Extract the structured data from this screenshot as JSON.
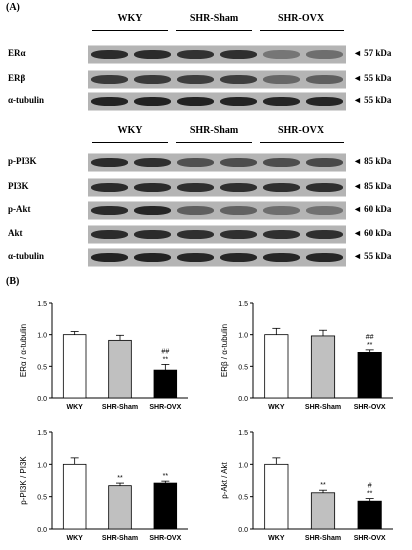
{
  "panelA": {
    "label": "(A)",
    "group_headers_top": [
      "WKY",
      "SHR-Sham",
      "SHR-OVX"
    ],
    "group_headers_bottom": [
      "WKY",
      "SHR-Sham",
      "SHR-OVX"
    ],
    "rows": [
      {
        "name": "ERα",
        "kda": "◄ 57 kDa",
        "intensity": [
          0.85,
          0.85,
          0.8,
          0.82,
          0.35,
          0.4
        ]
      },
      {
        "name": "ERβ",
        "kda": "◄ 55 kDa",
        "intensity": [
          0.75,
          0.75,
          0.72,
          0.72,
          0.45,
          0.5
        ]
      },
      {
        "name": "α-tubulin",
        "kda": "◄ 55 kDa",
        "intensity": [
          0.9,
          0.9,
          0.9,
          0.9,
          0.88,
          0.88
        ]
      },
      {
        "name": "p-PI3K",
        "kda": "◄ 85 kDa",
        "intensity": [
          0.85,
          0.82,
          0.6,
          0.62,
          0.62,
          0.65
        ]
      },
      {
        "name": "PI3K",
        "kda": "◄ 85 kDa",
        "intensity": [
          0.85,
          0.85,
          0.82,
          0.82,
          0.82,
          0.82
        ]
      },
      {
        "name": "p-Akt",
        "kda": "◄ 60 kDa",
        "intensity": [
          0.85,
          0.88,
          0.5,
          0.48,
          0.4,
          0.38
        ]
      },
      {
        "name": "Akt",
        "kda": "◄ 60 kDa",
        "intensity": [
          0.85,
          0.85,
          0.82,
          0.82,
          0.82,
          0.82
        ]
      },
      {
        "name": "α-tubulin",
        "kda": "◄ 55 kDa",
        "intensity": [
          0.9,
          0.9,
          0.88,
          0.88,
          0.88,
          0.88
        ]
      }
    ]
  },
  "panelB": {
    "label": "(B)"
  },
  "chart_data": [
    {
      "type": "bar",
      "categories": [
        "WKY",
        "SHR-Sham",
        "SHR-OVX"
      ],
      "values": [
        1.0,
        0.91,
        0.44
      ],
      "errors": [
        0.05,
        0.08,
        0.09
      ],
      "colors": [
        "#ffffff",
        "#c0c0c0",
        "#000000"
      ],
      "annotations": [
        "",
        "",
        "##\n**"
      ],
      "ylabel": "ERα / α-tubulin",
      "ylim": [
        0,
        1.5
      ],
      "yticks": [
        "0.0",
        "0.5",
        "1.0",
        "1.5"
      ]
    },
    {
      "type": "bar",
      "categories": [
        "WKY",
        "SHR-Sham",
        "SHR-OVX"
      ],
      "values": [
        1.0,
        0.98,
        0.72
      ],
      "errors": [
        0.1,
        0.09,
        0.04
      ],
      "colors": [
        "#ffffff",
        "#c0c0c0",
        "#000000"
      ],
      "annotations": [
        "",
        "",
        "##\n**"
      ],
      "ylabel": "ERβ / α-tubulin",
      "ylim": [
        0,
        1.5
      ],
      "yticks": [
        "0.0",
        "0.5",
        "1.0",
        "1.5"
      ]
    },
    {
      "type": "bar",
      "categories": [
        "WKY",
        "SHR-Sham",
        "SHR-OVX"
      ],
      "values": [
        1.0,
        0.67,
        0.71
      ],
      "errors": [
        0.1,
        0.04,
        0.03
      ],
      "colors": [
        "#ffffff",
        "#c0c0c0",
        "#000000"
      ],
      "annotations": [
        "",
        "**",
        "**"
      ],
      "ylabel": "p-PI3K / PI3K",
      "ylim": [
        0,
        1.5
      ],
      "yticks": [
        "0.0",
        "0.5",
        "1.0",
        "1.5"
      ]
    },
    {
      "type": "bar",
      "categories": [
        "WKY",
        "SHR-Sham",
        "SHR-OVX"
      ],
      "values": [
        1.0,
        0.56,
        0.43
      ],
      "errors": [
        0.1,
        0.04,
        0.04
      ],
      "colors": [
        "#ffffff",
        "#c0c0c0",
        "#000000"
      ],
      "annotations": [
        "",
        "**",
        "#\n**"
      ],
      "ylabel": "p-Akt / Akt",
      "ylim": [
        0,
        1.5
      ],
      "yticks": [
        "0.0",
        "0.5",
        "1.0",
        "1.5"
      ]
    }
  ]
}
